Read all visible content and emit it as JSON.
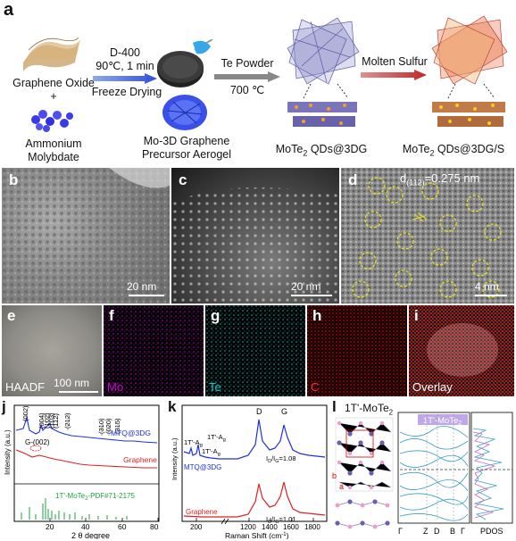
{
  "panel_a": {
    "label": "a",
    "graphene_oxide": "Graphene Oxide",
    "plus": "+",
    "ammonium": "Ammonium",
    "molybdate": "Molybdate",
    "step1_top1": "D-400",
    "step1_top2": "90℃, 1 min",
    "step1_bottom": "Freeze Drying",
    "aerogel_line1": "Mo-3D Graphene",
    "aerogel_line2": "Precursor Aerogel",
    "step2_top": "Te Powder",
    "step2_bottom": "700 ℃",
    "product1_pre": "MoTe",
    "product1_sub": "2",
    "product1_post": " QDs@3DG",
    "step3": "Molten Sulfur",
    "product2_pre": "MoTe",
    "product2_sub": "2",
    "product2_post": " QDs@3DG/S"
  },
  "micrographs": {
    "b": {
      "label": "b",
      "scale": "20 nm"
    },
    "c": {
      "label": "c",
      "scale": "20 nm"
    },
    "d": {
      "label": "d",
      "d_prefix": "d",
      "d_sub": "(112)",
      "d_value": "=0.275 nm",
      "scale": "4 nm"
    }
  },
  "maps": {
    "e": {
      "label": "e",
      "name": "HAADF",
      "scale": "100 nm"
    },
    "f": {
      "label": "f",
      "name": "Mo",
      "color": "#d400d4"
    },
    "g": {
      "label": "g",
      "name": "Te",
      "color": "#00d0d0"
    },
    "h": {
      "label": "h",
      "name": "C",
      "color": "#e00000"
    },
    "i": {
      "label": "i",
      "name": "Overlay"
    }
  },
  "panel_j": {
    "label": "j",
    "ylabel": "Intensity (a.u.)",
    "xlabel": "2 θ degree",
    "peaks": [
      "(002)",
      "(004)",
      "(102)",
      "(103)",
      "(112)",
      "(212)",
      "(310)",
      "(020)",
      "(315)"
    ],
    "g002": "G-(002)",
    "series_mtq": "MTQ@3DG",
    "series_graphene": "Graphene",
    "reference": "1T'-MoTe",
    "reference_sub": "2",
    "reference_post": "-PDF#71-2175",
    "xticks": [
      "20",
      "40",
      "60",
      "80"
    ],
    "colors": {
      "mtq": "#2030e0",
      "graphene": "#e02020",
      "ref": "#20a040"
    }
  },
  "panel_k": {
    "label": "k",
    "ylabel": "Intensity (a.u.)",
    "xlabel": "Raman Shift (cm",
    "xlabel_sup": "-1",
    "xlabel_end": ")",
    "peak_d": "D",
    "peak_g": "G",
    "modes": [
      "1T'-A",
      "1T'-A",
      "1T'-A"
    ],
    "ratio_mtq": "I",
    "ratio_mtq_val": "=1.08",
    "ratio_gr_val": "=1.01",
    "ratio_sub_d": "D",
    "ratio_sub_g": "G",
    "ratio_slash": "/I",
    "series_mtq": "MTQ@3DG",
    "series_graphene": "Graphene",
    "xticks": [
      "200",
      "1200",
      "1400",
      "1600",
      "1800"
    ]
  },
  "panel_l": {
    "label": "l",
    "title": "1T'-MoTe",
    "title_sub": "2",
    "band_title": "1T'-MoTe",
    "band_title_sub": "2",
    "axis_b": "b",
    "axis_a": "a",
    "kpoints": [
      "Γ",
      "Z",
      "D",
      "B",
      "Γ"
    ],
    "pdos": "PDOS"
  }
}
